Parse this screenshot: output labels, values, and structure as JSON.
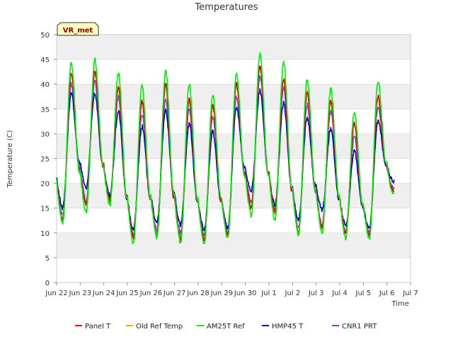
{
  "chart_data": {
    "type": "line",
    "title": "Temperatures",
    "xlabel": "Time",
    "ylabel": "Temperature (C)",
    "ylim": [
      0,
      50
    ],
    "yticks": [
      0,
      5,
      10,
      15,
      20,
      25,
      30,
      35,
      40,
      45,
      50
    ],
    "xlim": [
      0,
      15
    ],
    "xtick_positions": [
      0,
      1,
      2,
      3,
      4,
      5,
      6,
      7,
      8,
      9,
      10,
      11,
      12,
      13,
      14,
      15
    ],
    "xtick_labels": [
      "Jun 22",
      "Jun 23",
      "Jun 24",
      "Jun 25",
      "Jun 26",
      "Jun 27",
      "Jun 28",
      "Jun 29",
      "Jun 30",
      "Jul 1",
      "Jul 2",
      "Jul 3",
      "Jul 4",
      "Jul 5",
      "Jul 6",
      "Jul 7"
    ],
    "grid": "horizontal bands",
    "legend_position": "bottom",
    "annotation": "VR_met",
    "daily_pattern_note": "",
    "series": [
      {
        "name": "Panel T",
        "color": "#dd0000",
        "daily_min": [
          12.5,
          15.5,
          16.5,
          9.0,
          9.5,
          8.5,
          8.5,
          9.5,
          15.0,
          14.0,
          10.0,
          11.0,
          10.0,
          9.5,
          18.5
        ],
        "daily_max": [
          42.0,
          42.5,
          39.5,
          36.5,
          40.0,
          37.0,
          35.5,
          40.0,
          43.5,
          41.0,
          38.5,
          36.5,
          32.0,
          37.5,
          19.5
        ]
      },
      {
        "name": "Old Ref Temp",
        "color": "#ffa500",
        "daily_min": [
          12.5,
          15.5,
          16.5,
          9.0,
          9.5,
          8.5,
          8.5,
          9.5,
          15.0,
          14.0,
          10.0,
          11.0,
          10.0,
          9.5,
          18.5
        ],
        "daily_max": [
          42.0,
          42.5,
          39.5,
          36.5,
          40.0,
          37.0,
          35.5,
          40.0,
          43.5,
          41.0,
          38.5,
          36.5,
          32.0,
          37.5,
          19.5
        ]
      },
      {
        "name": "AM25T Ref",
        "color": "#00ee00",
        "daily_min": [
          12.0,
          14.0,
          15.5,
          7.8,
          9.0,
          8.0,
          7.8,
          8.8,
          13.5,
          12.5,
          9.5,
          10.0,
          9.0,
          8.8,
          18.0
        ],
        "daily_max": [
          44.2,
          45.0,
          42.2,
          39.5,
          42.5,
          40.0,
          38.0,
          42.2,
          46.0,
          44.5,
          41.0,
          39.0,
          34.5,
          40.5,
          19.0
        ]
      },
      {
        "name": "HMP45 T",
        "color": "#0000cc",
        "daily_min": [
          15.0,
          19.0,
          17.5,
          10.5,
          12.0,
          11.5,
          10.5,
          11.0,
          18.5,
          15.5,
          12.5,
          14.5,
          11.5,
          11.0,
          20.5
        ],
        "daily_max": [
          38.0,
          38.2,
          34.5,
          31.5,
          34.8,
          32.0,
          30.5,
          35.2,
          38.8,
          36.2,
          33.2,
          31.0,
          26.5,
          32.5,
          21.0
        ]
      },
      {
        "name": "CNR1 PRT",
        "color": "#9933cc",
        "daily_min": [
          13.5,
          16.5,
          17.0,
          9.5,
          10.5,
          10.0,
          9.5,
          10.0,
          16.0,
          14.5,
          11.0,
          11.5,
          10.0,
          10.0,
          19.0
        ],
        "daily_max": [
          40.0,
          40.5,
          37.5,
          34.0,
          37.0,
          35.0,
          33.5,
          37.5,
          41.5,
          39.5,
          36.0,
          34.5,
          29.5,
          35.5,
          19.8
        ]
      }
    ]
  },
  "legend": {
    "items": [
      {
        "label": "Panel T",
        "color": "#dd0000"
      },
      {
        "label": "Old Ref Temp",
        "color": "#ffa500"
      },
      {
        "label": "AM25T Ref",
        "color": "#00ee00"
      },
      {
        "label": "HMP45 T",
        "color": "#0000cc"
      },
      {
        "label": "CNR1 PRT",
        "color": "#9933cc"
      }
    ]
  },
  "colors": {
    "band": "#efefef",
    "badge_fill": "#ffffc0",
    "badge_border": "#333333"
  }
}
